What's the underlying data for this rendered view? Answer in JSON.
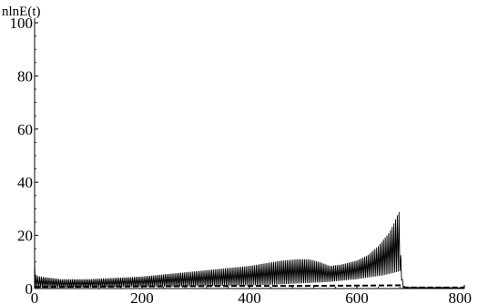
{
  "chart_data": {
    "type": "line",
    "ylabel": "nlnE(t)",
    "xlabel": "",
    "xlim": [
      0,
      800
    ],
    "ylim": [
      0,
      100
    ],
    "x_ticks": [
      0,
      200,
      400,
      600,
      800
    ],
    "y_ticks": [
      0,
      20,
      40,
      60,
      80,
      100
    ],
    "x_tick_labels": [
      "0",
      "200",
      "400",
      "600",
      "800"
    ],
    "y_tick_labels": [
      "0",
      "20",
      "40",
      "60",
      "80",
      "100"
    ],
    "grid": false,
    "series": [
      {
        "style": "oscillating-band",
        "color": "#000000",
        "upper_envelope": {
          "x": [
            0,
            3,
            10,
            50,
            100,
            150,
            200,
            250,
            300,
            350,
            400,
            430,
            460,
            490,
            510,
            530,
            550,
            570,
            600,
            620,
            640,
            660,
            670,
            676,
            679,
            682,
            686,
            800
          ],
          "y": [
            10,
            5,
            4.5,
            3.5,
            3.5,
            4,
            4.5,
            5.5,
            6.5,
            7.5,
            8.5,
            9.5,
            10.5,
            11,
            11,
            10,
            8.5,
            9,
            10.5,
            12.5,
            16,
            21,
            25,
            28,
            29,
            10,
            0.5,
            0.3
          ]
        },
        "lower_envelope": {
          "x": [
            0,
            100,
            200,
            300,
            400,
            450,
            500,
            550,
            600,
            650,
            680,
            686,
            800
          ],
          "y": [
            0.3,
            0.4,
            0.6,
            0.8,
            1.2,
            1.5,
            2,
            2.5,
            3.5,
            5,
            6.5,
            0.3,
            0.2
          ]
        }
      },
      {
        "style": "dashed-baseline",
        "color": "#000000",
        "x": [
          0,
          100,
          200,
          300,
          400,
          500,
          600,
          680,
          690,
          800
        ],
        "y": [
          0.6,
          0.7,
          0.8,
          0.9,
          1,
          1,
          1.1,
          1.2,
          0.4,
          0.4
        ]
      }
    ]
  }
}
